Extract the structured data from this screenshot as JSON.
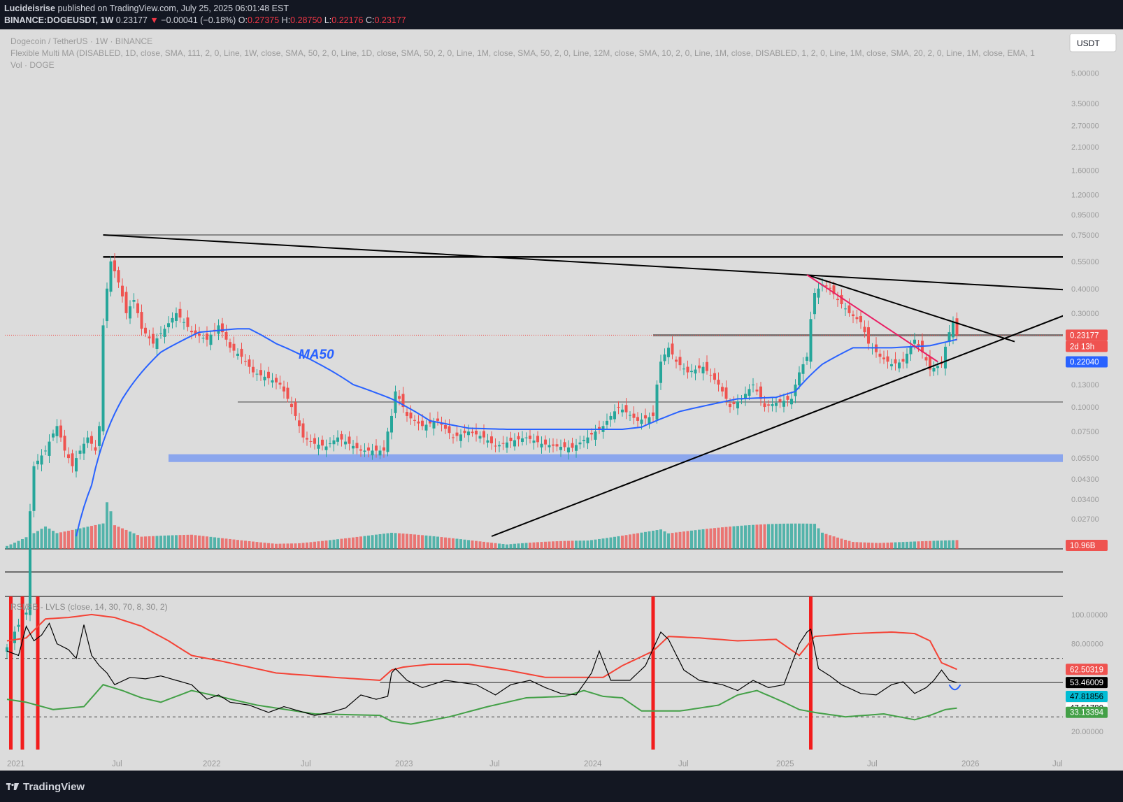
{
  "header": {
    "publisher": "Lucideisrise",
    "published_text": "published on TradingView.com, July 25, 2025 06:01:48 EST",
    "symbol": "BINANCE:DOGEUSDT, 1W",
    "last": "0.23177",
    "change_arrow": "▼",
    "change": "−0.00041 (−0.18%)",
    "o_label": "O:",
    "o": "0.27375",
    "h_label": "H:",
    "h": "0.28750",
    "l_label": "L:",
    "l": "0.22176",
    "c_label": "C:",
    "c": "0.23177"
  },
  "chart_title": "Dogecoin / TetherUS · 1W · BINANCE",
  "indicator_line": "Flexible Multi MA (DISABLED, 1D, close, SMA, 111, 2, 0, Line, 1W, close, SMA, 50, 2, 0, Line, 1D, close, SMA, 50, 2, 0, Line, 1M, close, SMA, 50, 2, 0, Line, 12M, close, SMA, 10, 2, 0, Line, 1M, close, DISABLED, 1, 2, 0, Line, 1M, close, SMA, 20, 2, 0, Line, 1M, close, EMA, 1",
  "vol_label": "Vol · DOGE",
  "currency_button": "USDT",
  "ma_annotation": "MA50",
  "rsi_label": "RSI/BB - LVLS (close, 14, 30, 70, 8, 30, 2)",
  "brand": "TradingView",
  "colors": {
    "background": "#dcdcdc",
    "up": "#26a69a",
    "down": "#ef5350",
    "ma50": "#2962ff",
    "trend": "#000000",
    "pink": "#e91e63",
    "support_zone": "#7c9cf0",
    "rsi_upper": "#f44336",
    "rsi_lower": "#43a047",
    "signal": "#f21d1d"
  },
  "chart_data": {
    "type": "candlestick",
    "price_scale": "log",
    "ylim": [
      0.022,
      6.0
    ],
    "y_ticks": [
      "5.00000",
      "3.50000",
      "2.70000",
      "2.10000",
      "1.60000",
      "1.20000",
      "0.95000",
      "0.75000",
      "0.55000",
      "0.40000",
      "0.30000",
      "0.23177",
      "0.22040",
      "0.17000",
      "0.13000",
      "0.10000",
      "0.07500",
      "0.05500",
      "0.04300",
      "0.03400",
      "0.02700"
    ],
    "x_ticks": [
      "2021",
      "Jul",
      "2022",
      "Jul",
      "2023",
      "Jul",
      "2024",
      "Jul",
      "2025",
      "Jul",
      "2026",
      "Jul"
    ],
    "price_path": [
      [
        0,
        0.006
      ],
      [
        5,
        0.009
      ],
      [
        7,
        0.05
      ],
      [
        10,
        0.06
      ],
      [
        13,
        0.08
      ],
      [
        15,
        0.06
      ],
      [
        17,
        0.05
      ],
      [
        19,
        0.06
      ],
      [
        21,
        0.07
      ],
      [
        23,
        0.06
      ],
      [
        24,
        0.08
      ],
      [
        25,
        0.26
      ],
      [
        26,
        0.4
      ],
      [
        27,
        0.55
      ],
      [
        28,
        0.49
      ],
      [
        29,
        0.43
      ],
      [
        31,
        0.3
      ],
      [
        33,
        0.35
      ],
      [
        35,
        0.25
      ],
      [
        38,
        0.21
      ],
      [
        41,
        0.25
      ],
      [
        44,
        0.3
      ],
      [
        48,
        0.24
      ],
      [
        52,
        0.22
      ],
      [
        55,
        0.26
      ],
      [
        58,
        0.2
      ],
      [
        61,
        0.18
      ],
      [
        64,
        0.15
      ],
      [
        68,
        0.14
      ],
      [
        71,
        0.13
      ],
      [
        74,
        0.1
      ],
      [
        77,
        0.07
      ],
      [
        80,
        0.065
      ],
      [
        83,
        0.063
      ],
      [
        86,
        0.07
      ],
      [
        89,
        0.065
      ],
      [
        92,
        0.06
      ],
      [
        95,
        0.06
      ],
      [
        98,
        0.06
      ],
      [
        100,
        0.09
      ],
      [
        101,
        0.12
      ],
      [
        104,
        0.09
      ],
      [
        108,
        0.08
      ],
      [
        112,
        0.085
      ],
      [
        116,
        0.07
      ],
      [
        120,
        0.075
      ],
      [
        124,
        0.07
      ],
      [
        127,
        0.063
      ],
      [
        131,
        0.067
      ],
      [
        135,
        0.07
      ],
      [
        139,
        0.065
      ],
      [
        143,
        0.063
      ],
      [
        147,
        0.062
      ],
      [
        151,
        0.07
      ],
      [
        155,
        0.08
      ],
      [
        159,
        0.1
      ],
      [
        164,
        0.085
      ],
      [
        168,
        0.09
      ],
      [
        170,
        0.17
      ],
      [
        172,
        0.2
      ],
      [
        174,
        0.17
      ],
      [
        177,
        0.15
      ],
      [
        181,
        0.16
      ],
      [
        185,
        0.13
      ],
      [
        188,
        0.1
      ],
      [
        191,
        0.11
      ],
      [
        194,
        0.13
      ],
      [
        197,
        0.1
      ],
      [
        200,
        0.105
      ],
      [
        204,
        0.11
      ],
      [
        206,
        0.15
      ],
      [
        208,
        0.18
      ],
      [
        210,
        0.38
      ],
      [
        212,
        0.42
      ],
      [
        214,
        0.4
      ],
      [
        216,
        0.35
      ],
      [
        219,
        0.3
      ],
      [
        222,
        0.27
      ],
      [
        224,
        0.21
      ],
      [
        227,
        0.18
      ],
      [
        230,
        0.165
      ],
      [
        233,
        0.17
      ],
      [
        236,
        0.22
      ],
      [
        238,
        0.19
      ],
      [
        240,
        0.155
      ],
      [
        243,
        0.165
      ],
      [
        245,
        0.24
      ],
      [
        246,
        0.27
      ],
      [
        247,
        0.23177
      ]
    ],
    "volume_path": [
      [
        0,
        0.1
      ],
      [
        7,
        0.45
      ],
      [
        10,
        0.6
      ],
      [
        13,
        0.4
      ],
      [
        25,
        0.55
      ],
      [
        26,
        1.0
      ],
      [
        27,
        0.8
      ],
      [
        28,
        0.5
      ],
      [
        35,
        0.25
      ],
      [
        48,
        0.3
      ],
      [
        70,
        0.15
      ],
      [
        100,
        0.35
      ],
      [
        130,
        0.1
      ],
      [
        170,
        0.45
      ],
      [
        172,
        0.35
      ],
      [
        210,
        0.6
      ],
      [
        212,
        0.4
      ],
      [
        220,
        0.2
      ],
      [
        245,
        0.2
      ]
    ],
    "series": [
      {
        "name": "MA50",
        "values": [
          [
            18,
            0.022
          ],
          [
            22,
            0.04
          ],
          [
            30,
            0.11
          ],
          [
            40,
            0.19
          ],
          [
            50,
            0.24
          ],
          [
            60,
            0.25
          ],
          [
            63,
            0.25
          ],
          [
            70,
            0.21
          ],
          [
            80,
            0.17
          ],
          [
            90,
            0.13
          ],
          [
            100,
            0.11
          ],
          [
            110,
            0.085
          ],
          [
            120,
            0.078
          ],
          [
            130,
            0.077
          ],
          [
            140,
            0.077
          ],
          [
            150,
            0.077
          ],
          [
            160,
            0.077
          ],
          [
            165,
            0.079
          ],
          [
            175,
            0.095
          ],
          [
            190,
            0.11
          ],
          [
            200,
            0.112
          ],
          [
            205,
            0.12
          ],
          [
            212,
            0.165
          ],
          [
            220,
            0.2
          ],
          [
            230,
            0.2
          ],
          [
            240,
            0.205
          ],
          [
            247,
            0.2204
          ]
        ]
      }
    ],
    "levels": [
      {
        "price": 0.75,
        "from_bar": 25
      },
      {
        "price": 0.58,
        "from_bar": 25
      },
      {
        "price": 0.2317,
        "from_bar": 168
      },
      {
        "price": 0.106,
        "from_bar": 60
      }
    ],
    "support_zone": {
      "low": 0.0525,
      "high": 0.0575,
      "from_bar": 42
    },
    "trendlines": [
      {
        "from": [
          25,
          0.75
        ],
        "to": [
          290,
          0.38
        ]
      },
      {
        "from": [
          126,
          0.022
        ],
        "to": [
          290,
          0.38
        ]
      },
      {
        "from": [
          208,
          0.47
        ],
        "to": [
          262,
          0.215
        ]
      },
      {
        "from": [
          208,
          0.47
        ],
        "to": [
          242,
          0.17
        ]
      }
    ],
    "last_labels": {
      "price": "0.23177",
      "countdown": "2d 13h",
      "ma50": "0.22040",
      "volume": "10.96B"
    },
    "rsi": {
      "ylim": [
        10,
        110
      ],
      "y_ticks": [
        "100.00000",
        "80.00000",
        "20.00000"
      ],
      "bands": [
        30,
        70
      ],
      "rsi_path": [
        [
          0,
          75
        ],
        [
          3,
          72
        ],
        [
          5,
          92
        ],
        [
          7,
          82
        ],
        [
          9,
          86
        ],
        [
          11,
          94
        ],
        [
          13,
          80
        ],
        [
          16,
          76
        ],
        [
          18,
          70
        ],
        [
          20,
          93
        ],
        [
          22,
          72
        ],
        [
          24,
          65
        ],
        [
          26,
          60
        ],
        [
          28,
          52
        ],
        [
          32,
          57
        ],
        [
          36,
          56
        ],
        [
          40,
          58
        ],
        [
          44,
          55
        ],
        [
          48,
          52
        ],
        [
          52,
          42
        ],
        [
          55,
          45
        ],
        [
          58,
          40
        ],
        [
          63,
          38
        ],
        [
          68,
          33
        ],
        [
          72,
          37
        ],
        [
          76,
          34
        ],
        [
          80,
          31
        ],
        [
          84,
          33
        ],
        [
          88,
          36
        ],
        [
          92,
          45
        ],
        [
          96,
          42
        ],
        [
          99,
          44
        ],
        [
          100,
          60
        ],
        [
          101,
          63
        ],
        [
          104,
          55
        ],
        [
          108,
          50
        ],
        [
          114,
          55
        ],
        [
          122,
          52
        ],
        [
          127,
          45
        ],
        [
          131,
          52
        ],
        [
          136,
          55
        ],
        [
          140,
          50
        ],
        [
          144,
          46
        ],
        [
          148,
          45
        ],
        [
          152,
          60
        ],
        [
          154,
          75
        ],
        [
          157,
          55
        ],
        [
          162,
          55
        ],
        [
          166,
          65
        ],
        [
          170,
          88
        ],
        [
          172,
          83
        ],
        [
          176,
          62
        ],
        [
          180,
          55
        ],
        [
          186,
          52
        ],
        [
          190,
          48
        ],
        [
          194,
          55
        ],
        [
          198,
          50
        ],
        [
          202,
          52
        ],
        [
          206,
          80
        ],
        [
          208,
          88
        ],
        [
          209,
          90
        ],
        [
          211,
          63
        ],
        [
          214,
          58
        ],
        [
          217,
          52
        ],
        [
          222,
          46
        ],
        [
          226,
          45
        ],
        [
          230,
          52
        ],
        [
          233,
          54
        ],
        [
          236,
          46
        ],
        [
          239,
          50
        ],
        [
          241,
          55
        ],
        [
          243,
          62
        ],
        [
          245,
          55
        ],
        [
          247,
          53.46
        ]
      ],
      "upper_path": [
        [
          0,
          82
        ],
        [
          5,
          84
        ],
        [
          10,
          97
        ],
        [
          16,
          98
        ],
        [
          22,
          100
        ],
        [
          28,
          98
        ],
        [
          35,
          92
        ],
        [
          42,
          82
        ],
        [
          48,
          72
        ],
        [
          56,
          68
        ],
        [
          70,
          60
        ],
        [
          85,
          57
        ],
        [
          97,
          55
        ],
        [
          100,
          62
        ],
        [
          103,
          64
        ],
        [
          110,
          66
        ],
        [
          120,
          66
        ],
        [
          130,
          62
        ],
        [
          140,
          57
        ],
        [
          155,
          57
        ],
        [
          160,
          65
        ],
        [
          168,
          75
        ],
        [
          172,
          85
        ],
        [
          180,
          84
        ],
        [
          190,
          82
        ],
        [
          200,
          83
        ],
        [
          206,
          72
        ],
        [
          210,
          85
        ],
        [
          220,
          87
        ],
        [
          230,
          88
        ],
        [
          236,
          87
        ],
        [
          240,
          82
        ],
        [
          243,
          67
        ],
        [
          247,
          62.5
        ]
      ],
      "lower_path": [
        [
          0,
          42
        ],
        [
          5,
          40
        ],
        [
          12,
          35
        ],
        [
          20,
          37
        ],
        [
          25,
          52
        ],
        [
          30,
          48
        ],
        [
          35,
          43
        ],
        [
          40,
          40
        ],
        [
          48,
          48
        ],
        [
          55,
          44
        ],
        [
          65,
          38
        ],
        [
          80,
          32
        ],
        [
          97,
          31
        ],
        [
          100,
          27
        ],
        [
          105,
          25
        ],
        [
          115,
          30
        ],
        [
          125,
          37
        ],
        [
          135,
          43
        ],
        [
          145,
          44
        ],
        [
          150,
          48
        ],
        [
          155,
          44
        ],
        [
          160,
          43
        ],
        [
          165,
          34
        ],
        [
          175,
          34
        ],
        [
          185,
          38
        ],
        [
          190,
          45
        ],
        [
          195,
          48
        ],
        [
          202,
          40
        ],
        [
          206,
          35
        ],
        [
          210,
          33
        ],
        [
          218,
          30
        ],
        [
          228,
          32
        ],
        [
          236,
          28
        ],
        [
          240,
          31
        ],
        [
          244,
          35
        ],
        [
          247,
          36
        ]
      ],
      "horizontal_line": 53.46,
      "values": [
        "62.50319",
        "53.46009",
        "47.81856",
        "47.51780",
        "33.13394"
      ],
      "signal_bars": [
        1,
        4,
        8,
        168,
        209
      ]
    }
  }
}
